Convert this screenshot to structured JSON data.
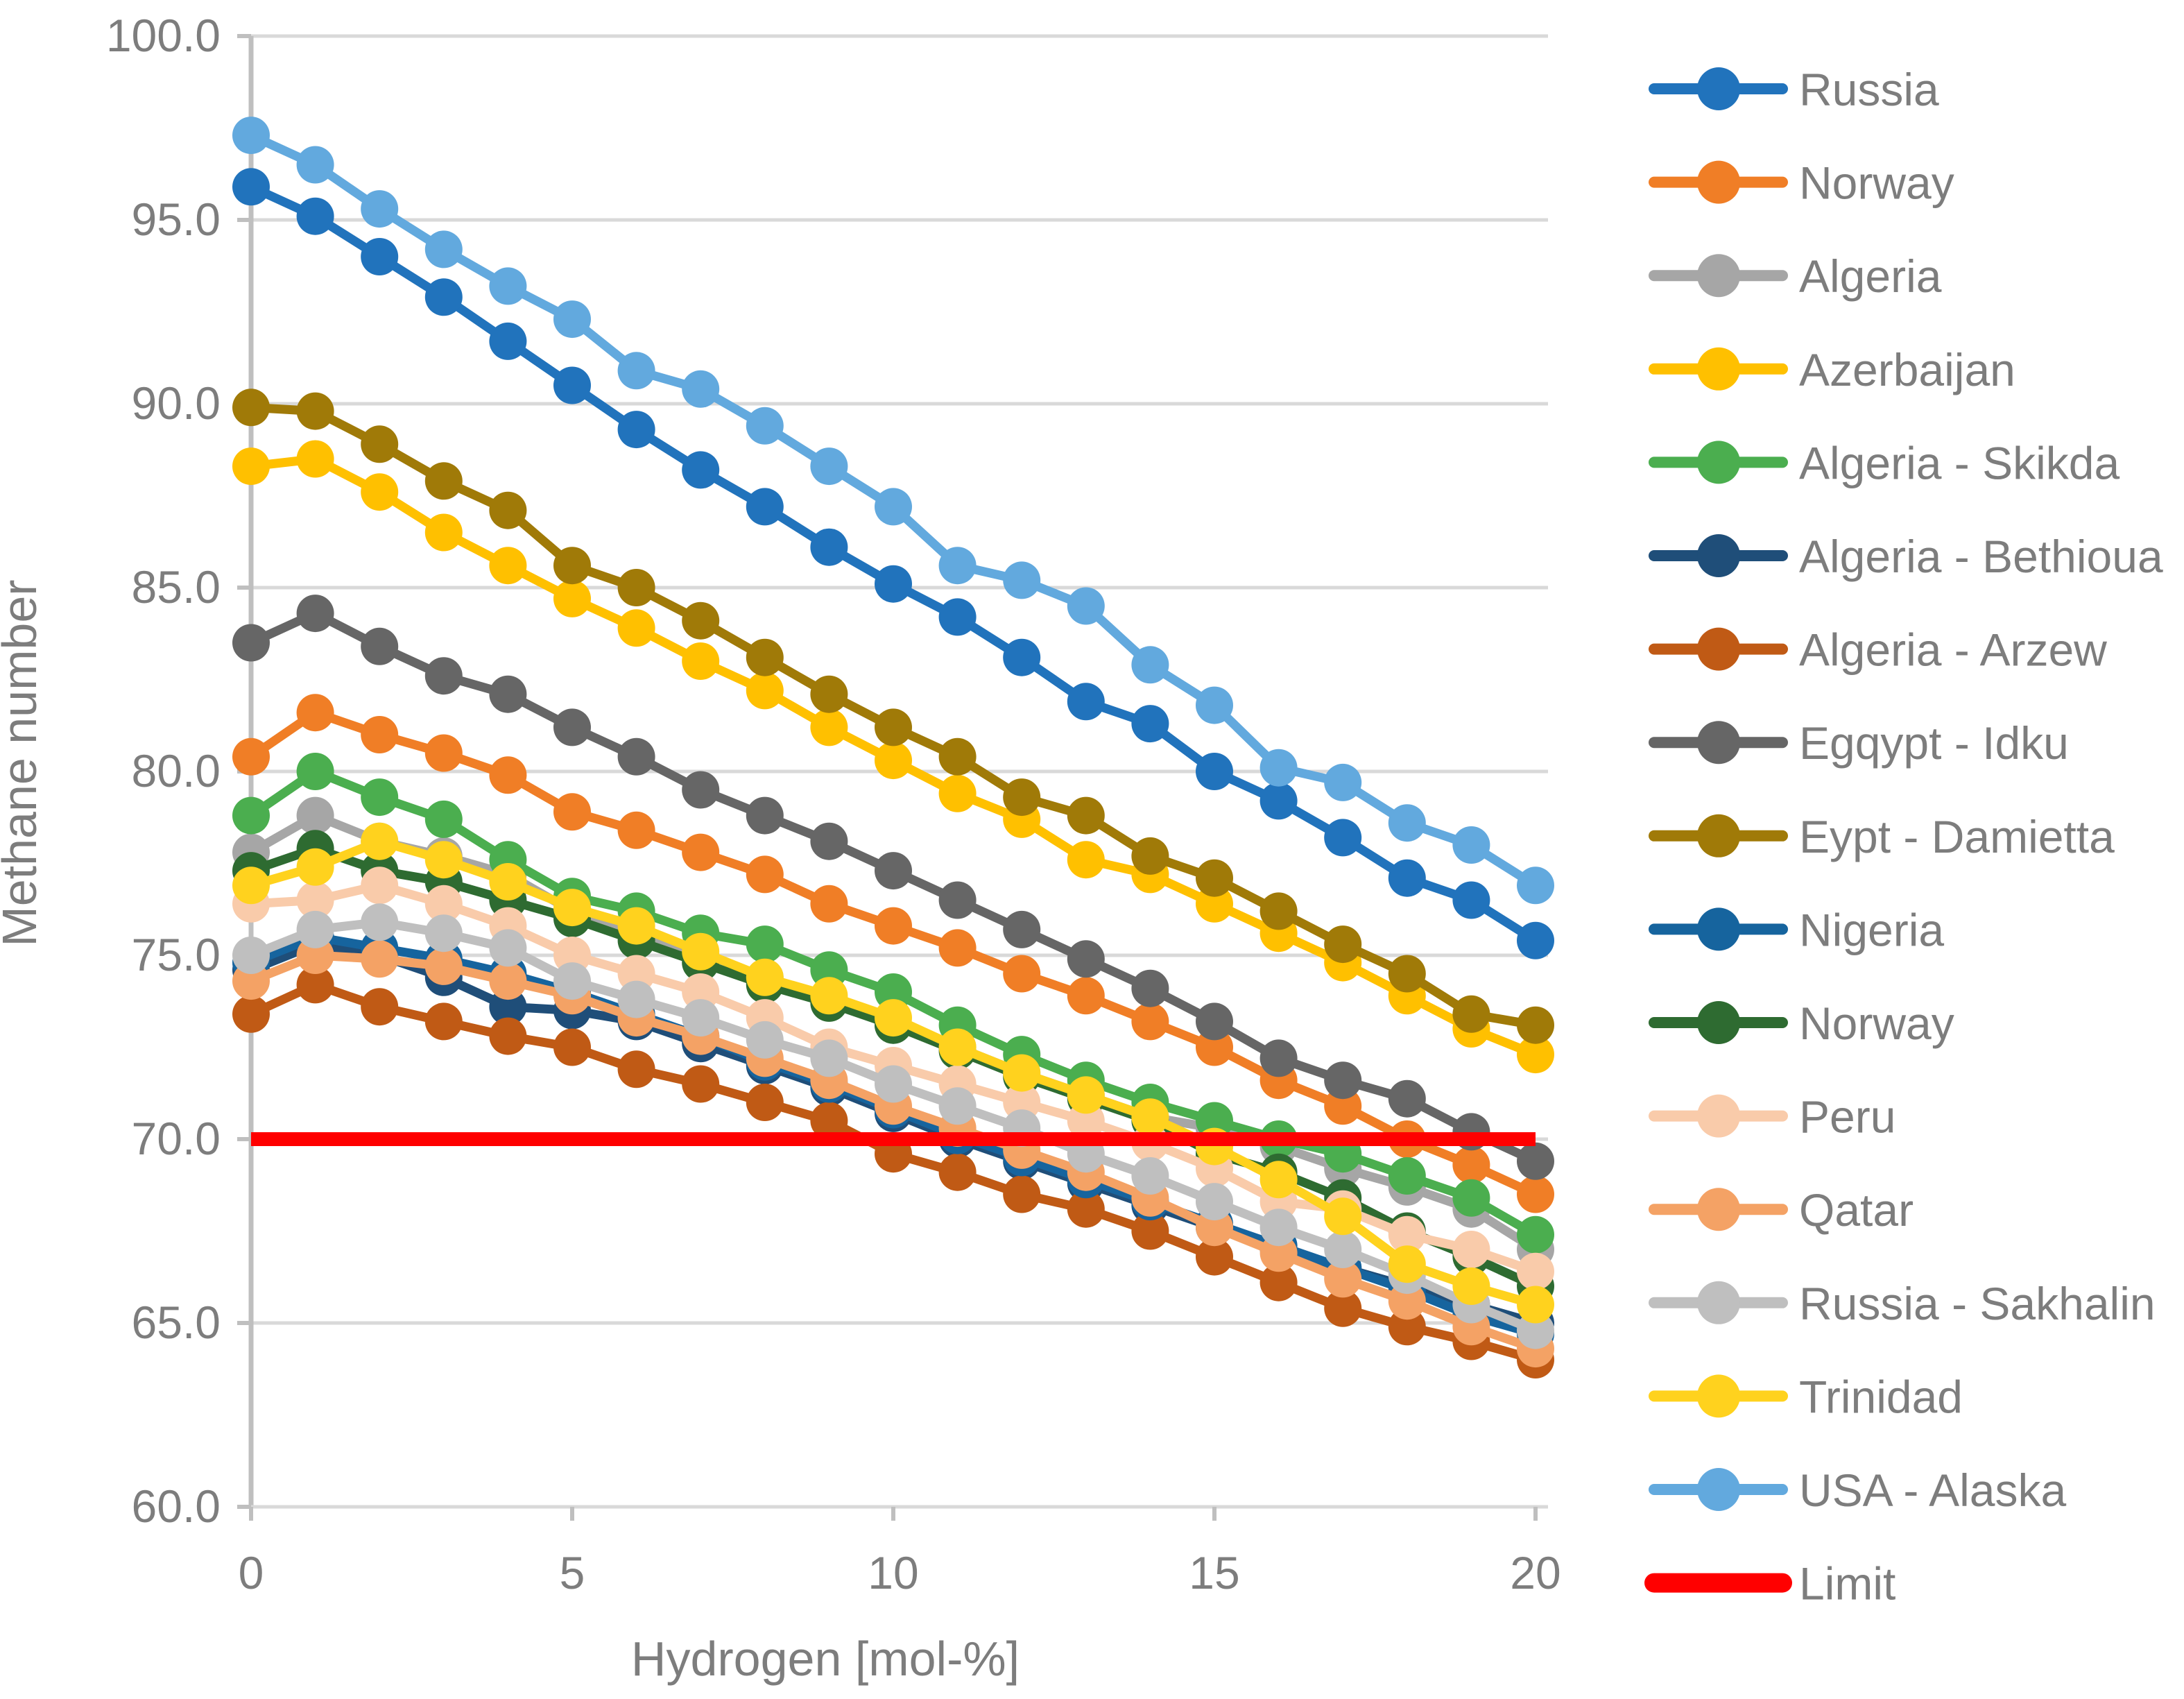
{
  "chart_data": {
    "type": "line",
    "title": "",
    "xlabel": "Hydrogen [mol-%]",
    "ylabel": "Methane number",
    "xlim": [
      0,
      20
    ],
    "ylim": [
      60,
      100
    ],
    "xticks": [
      0,
      5,
      10,
      15,
      20
    ],
    "yticks": [
      "100.0",
      "95.0",
      "90.0",
      "85.0",
      "80.0",
      "75.0",
      "70.0",
      "65.0",
      "60.0"
    ],
    "ytick_values": [
      100,
      95,
      90,
      85,
      80,
      75,
      70,
      65,
      60
    ],
    "grid": "horizontal",
    "legend_position": "right",
    "x": [
      0,
      1,
      2,
      3,
      4,
      5,
      6,
      7,
      8,
      9,
      10,
      11,
      12,
      13,
      14,
      15,
      16,
      17,
      18,
      19,
      20
    ],
    "series": [
      {
        "name": "Russia",
        "color": "#2173BC",
        "values": [
          95.9,
          95.1,
          94.0,
          92.9,
          91.7,
          90.5,
          89.3,
          88.2,
          87.2,
          86.1,
          85.1,
          84.2,
          83.1,
          81.9,
          81.3,
          80.0,
          79.2,
          78.2,
          77.1,
          76.5,
          75.4
        ]
      },
      {
        "name": "Norway",
        "color": "#F07E26",
        "values": [
          80.4,
          81.6,
          81.0,
          80.5,
          79.9,
          78.9,
          78.4,
          77.8,
          77.2,
          76.4,
          75.8,
          75.2,
          74.5,
          73.9,
          73.2,
          72.5,
          71.6,
          70.9,
          70.0,
          69.3,
          68.5
        ]
      },
      {
        "name": "Algeria",
        "color": "#A6A6A6",
        "values": [
          77.8,
          78.8,
          78.1,
          77.7,
          77.2,
          76.2,
          75.6,
          75.0,
          74.4,
          73.8,
          73.1,
          72.5,
          71.8,
          71.2,
          70.6,
          70.3,
          69.8,
          69.2,
          68.7,
          68.1,
          67.0
        ]
      },
      {
        "name": "Azerbaijan",
        "color": "#FFC000",
        "values": [
          88.3,
          88.5,
          87.6,
          86.5,
          85.6,
          84.7,
          83.9,
          83.0,
          82.2,
          81.2,
          80.3,
          79.4,
          78.7,
          77.6,
          77.2,
          76.4,
          75.6,
          74.8,
          73.9,
          73.0,
          72.3
        ]
      },
      {
        "name": "Algeria - Skikda",
        "color": "#4BAE4F",
        "values": [
          78.8,
          80.0,
          79.3,
          78.7,
          77.6,
          76.6,
          76.2,
          75.6,
          75.3,
          74.6,
          74.0,
          73.1,
          72.3,
          71.6,
          71.0,
          70.5,
          70.0,
          69.6,
          69.0,
          68.4,
          67.4
        ]
      },
      {
        "name": "Algeria - Bethioua",
        "color": "#1F4E79",
        "values": [
          74.6,
          75.3,
          75.0,
          74.4,
          73.6,
          73.5,
          73.2,
          72.6,
          72.0,
          71.4,
          70.7,
          70.0,
          69.4,
          68.8,
          68.2,
          67.6,
          67.0,
          66.5,
          66.0,
          65.5,
          65.0
        ]
      },
      {
        "name": "Algeria - Arzew",
        "color": "#C05A15",
        "values": [
          73.4,
          74.2,
          73.6,
          73.2,
          72.8,
          72.5,
          71.9,
          71.5,
          71.0,
          70.5,
          69.6,
          69.1,
          68.5,
          68.1,
          67.5,
          66.8,
          66.1,
          65.4,
          64.9,
          64.5,
          64.0
        ]
      },
      {
        "name": "Egqypt - Idku",
        "color": "#666666",
        "values": [
          83.5,
          84.3,
          83.4,
          82.6,
          82.1,
          81.2,
          80.4,
          79.5,
          78.8,
          78.1,
          77.3,
          76.5,
          75.7,
          74.9,
          74.1,
          73.2,
          72.2,
          71.6,
          71.1,
          70.2,
          69.4
        ]
      },
      {
        "name": "Eypt - Damietta",
        "color": "#A07A08",
        "values": [
          89.9,
          89.8,
          88.9,
          87.9,
          87.1,
          85.6,
          85.0,
          84.1,
          83.1,
          82.1,
          81.2,
          80.4,
          79.3,
          78.8,
          77.7,
          77.1,
          76.2,
          75.3,
          74.5,
          73.4,
          73.1
        ]
      },
      {
        "name": "Nigeria",
        "color": "#16649E",
        "values": [
          74.8,
          75.5,
          75.2,
          74.9,
          74.5,
          74.0,
          73.4,
          72.8,
          72.1,
          71.5,
          70.8,
          70.1,
          69.5,
          68.9,
          68.3,
          67.7,
          67.1,
          66.5,
          65.9,
          65.2,
          64.7
        ]
      },
      {
        "name": "Norway",
        "color": "#2E6B31",
        "values": [
          77.3,
          77.9,
          77.3,
          77.0,
          76.5,
          76.0,
          75.4,
          74.8,
          74.2,
          73.7,
          73.1,
          72.4,
          71.7,
          71.1,
          70.5,
          69.6,
          69.1,
          68.4,
          67.5,
          66.8,
          66.0
        ]
      },
      {
        "name": "Peru",
        "color": "#F9CBAA",
        "values": [
          76.4,
          76.5,
          76.9,
          76.4,
          75.8,
          75.0,
          74.5,
          74.0,
          73.3,
          72.5,
          72.0,
          71.5,
          71.0,
          70.5,
          69.9,
          69.2,
          68.3,
          68.1,
          67.4,
          67.0,
          66.4
        ]
      },
      {
        "name": "Qatar",
        "color": "#F4A265",
        "values": [
          74.3,
          75.0,
          74.9,
          74.7,
          74.3,
          73.9,
          73.3,
          72.8,
          72.2,
          71.6,
          70.9,
          70.3,
          69.7,
          69.1,
          68.4,
          67.6,
          66.9,
          66.2,
          65.6,
          64.9,
          64.3
        ]
      },
      {
        "name": "Russia - Sakhalin",
        "color": "#BFBFBF",
        "values": [
          75.0,
          75.7,
          75.9,
          75.6,
          75.2,
          74.3,
          73.8,
          73.3,
          72.7,
          72.2,
          71.5,
          70.9,
          70.3,
          69.6,
          69.0,
          68.3,
          67.6,
          67.0,
          66.3,
          65.5,
          64.8
        ]
      },
      {
        "name": "Trinidad",
        "color": "#FFD21E",
        "values": [
          76.9,
          77.4,
          78.1,
          77.6,
          77.0,
          76.3,
          75.8,
          75.1,
          74.4,
          73.9,
          73.3,
          72.5,
          71.8,
          71.2,
          70.6,
          69.8,
          68.9,
          67.9,
          66.6,
          66.0,
          65.5
        ]
      },
      {
        "name": "USA - Alaska",
        "color": "#62A9DE",
        "values": [
          97.3,
          96.5,
          95.3,
          94.2,
          93.2,
          92.3,
          90.9,
          90.4,
          89.4,
          88.3,
          87.2,
          85.6,
          85.2,
          84.5,
          82.9,
          81.8,
          80.1,
          79.7,
          78.6,
          78.0,
          76.9
        ]
      }
    ],
    "limit_line": {
      "name": "Limit",
      "color": "#FF0000",
      "value": 70.0
    },
    "legend_labels": [
      "Russia",
      "Norway",
      "Algeria",
      "Azerbaijan",
      "Algeria - Skikda",
      "Algeria - Bethioua",
      "Algeria - Arzew",
      "Egqypt - Idku",
      "Eypt - Damietta",
      "Nigeria",
      "Norway",
      "Peru",
      "Qatar",
      "Russia - Sakhalin",
      "Trinidad",
      "USA - Alaska",
      "Limit"
    ]
  },
  "text_colors": {
    "axis_text": "#7D7D7D",
    "gridline": "#D9D9D9",
    "axis_line": "#BFBFBF"
  }
}
